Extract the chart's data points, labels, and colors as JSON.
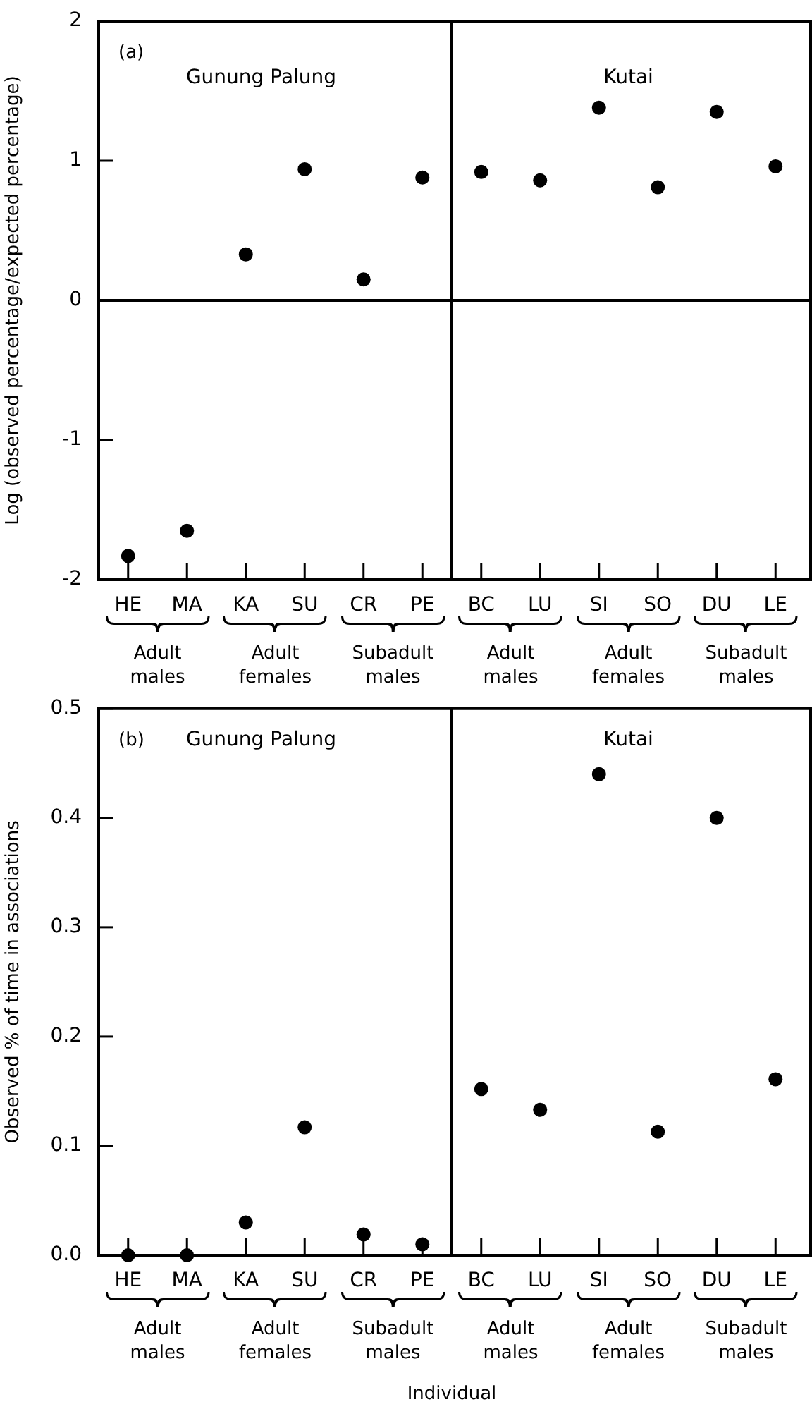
{
  "chart_data": [
    {
      "type": "scatter",
      "ylabel": "Log (observed percentage/expected percentage)",
      "categories": [
        "HE",
        "MA",
        "KA",
        "SU",
        "CR",
        "PE",
        "BC",
        "LU",
        "SI",
        "SO",
        "DU",
        "LE"
      ],
      "values": [
        -1.83,
        -1.65,
        0.33,
        0.94,
        0.15,
        0.88,
        0.92,
        0.86,
        1.38,
        0.81,
        1.35,
        0.96
      ],
      "color": "#000000",
      "marker": "circle",
      "ylim": [
        -2,
        2
      ],
      "yticks": [
        -2,
        -1,
        0,
        1,
        2
      ],
      "ref_lines": [
        {
          "axis": "y",
          "value": 0
        }
      ],
      "annotations": [
        "(a)",
        "Gunung Palung",
        "Kutai",
        "Adult males",
        "Adult females",
        "Subadult males",
        "Adult males",
        "Adult females",
        "Subadult males"
      ]
    },
    {
      "type": "scatter",
      "xlabel": "Individual",
      "ylabel": "Observed % of time in associations",
      "categories": [
        "HE",
        "MA",
        "KA",
        "SU",
        "CR",
        "PE",
        "BC",
        "LU",
        "SI",
        "SO",
        "DU",
        "LE"
      ],
      "values": [
        0,
        0,
        0.03,
        0.117,
        0.019,
        0.01,
        0.152,
        0.133,
        0.44,
        0.113,
        0.4,
        0.161
      ],
      "color": "#000000",
      "marker": "circle",
      "ylim": [
        0,
        0.5
      ],
      "yticks": [
        {
          "value": 0,
          "label": "0.0"
        },
        {
          "value": 0.1,
          "label": "0.1"
        },
        {
          "value": 0.2,
          "label": "0.2"
        },
        {
          "value": 0.3,
          "label": "0.3"
        },
        {
          "value": 0.4,
          "label": "0.4"
        },
        {
          "value": 0.5,
          "label": "0.5"
        }
      ],
      "annotations": [
        "(b)",
        "Gunung Palung",
        "Kutai",
        "Adult males",
        "Adult females",
        "Subadult males",
        "Adult males",
        "Adult females",
        "Subadult males"
      ]
    }
  ]
}
